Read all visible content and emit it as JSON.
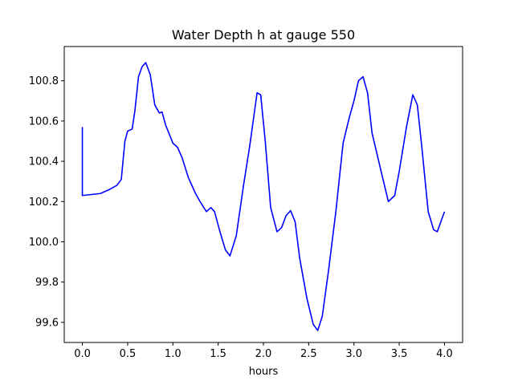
{
  "chart_data": {
    "type": "line",
    "title": "Water Depth h at gauge 550",
    "xlabel": "hours",
    "ylabel": "",
    "xlim": [
      -0.2,
      4.2
    ],
    "ylim": [
      99.5,
      100.97
    ],
    "x_ticks": [
      0.0,
      0.5,
      1.0,
      1.5,
      2.0,
      2.5,
      3.0,
      3.5,
      4.0
    ],
    "x_tick_labels": [
      "0.0",
      "0.5",
      "1.0",
      "1.5",
      "2.0",
      "2.5",
      "3.0",
      "3.5",
      "4.0"
    ],
    "y_ticks": [
      99.6,
      99.8,
      100.0,
      100.2,
      100.4,
      100.6,
      100.8
    ],
    "y_tick_labels": [
      "99.6",
      "99.8",
      "100.0",
      "100.2",
      "100.4",
      "100.6",
      "100.8"
    ],
    "grid": false,
    "series": [
      {
        "color": "#0000ff",
        "points": [
          [
            0.0,
            100.57
          ],
          [
            0.0,
            100.23
          ],
          [
            0.1,
            100.235
          ],
          [
            0.2,
            100.24
          ],
          [
            0.3,
            100.26
          ],
          [
            0.38,
            100.28
          ],
          [
            0.43,
            100.31
          ],
          [
            0.47,
            100.5
          ],
          [
            0.5,
            100.55
          ],
          [
            0.55,
            100.56
          ],
          [
            0.58,
            100.65
          ],
          [
            0.62,
            100.82
          ],
          [
            0.66,
            100.87
          ],
          [
            0.7,
            100.89
          ],
          [
            0.75,
            100.83
          ],
          [
            0.8,
            100.68
          ],
          [
            0.85,
            100.64
          ],
          [
            0.88,
            100.645
          ],
          [
            0.92,
            100.58
          ],
          [
            1.0,
            100.49
          ],
          [
            1.05,
            100.47
          ],
          [
            1.1,
            100.42
          ],
          [
            1.17,
            100.32
          ],
          [
            1.25,
            100.24
          ],
          [
            1.3,
            100.2
          ],
          [
            1.37,
            100.15
          ],
          [
            1.42,
            100.17
          ],
          [
            1.46,
            100.15
          ],
          [
            1.52,
            100.05
          ],
          [
            1.58,
            99.96
          ],
          [
            1.63,
            99.93
          ],
          [
            1.7,
            100.03
          ],
          [
            1.78,
            100.28
          ],
          [
            1.85,
            100.48
          ],
          [
            1.93,
            100.74
          ],
          [
            1.97,
            100.73
          ],
          [
            2.02,
            100.5
          ],
          [
            2.08,
            100.17
          ],
          [
            2.15,
            100.05
          ],
          [
            2.2,
            100.07
          ],
          [
            2.25,
            100.13
          ],
          [
            2.3,
            100.155
          ],
          [
            2.35,
            100.1
          ],
          [
            2.4,
            99.92
          ],
          [
            2.48,
            99.72
          ],
          [
            2.55,
            99.59
          ],
          [
            2.6,
            99.56
          ],
          [
            2.65,
            99.63
          ],
          [
            2.72,
            99.86
          ],
          [
            2.8,
            100.15
          ],
          [
            2.88,
            100.49
          ],
          [
            2.95,
            100.62
          ],
          [
            3.0,
            100.7
          ],
          [
            3.05,
            100.8
          ],
          [
            3.1,
            100.82
          ],
          [
            3.15,
            100.74
          ],
          [
            3.2,
            100.54
          ],
          [
            3.3,
            100.35
          ],
          [
            3.38,
            100.2
          ],
          [
            3.45,
            100.23
          ],
          [
            3.5,
            100.35
          ],
          [
            3.58,
            100.57
          ],
          [
            3.65,
            100.73
          ],
          [
            3.7,
            100.68
          ],
          [
            3.75,
            100.47
          ],
          [
            3.82,
            100.15
          ],
          [
            3.88,
            100.06
          ],
          [
            3.92,
            100.05
          ],
          [
            4.0,
            100.15
          ]
        ]
      }
    ]
  }
}
